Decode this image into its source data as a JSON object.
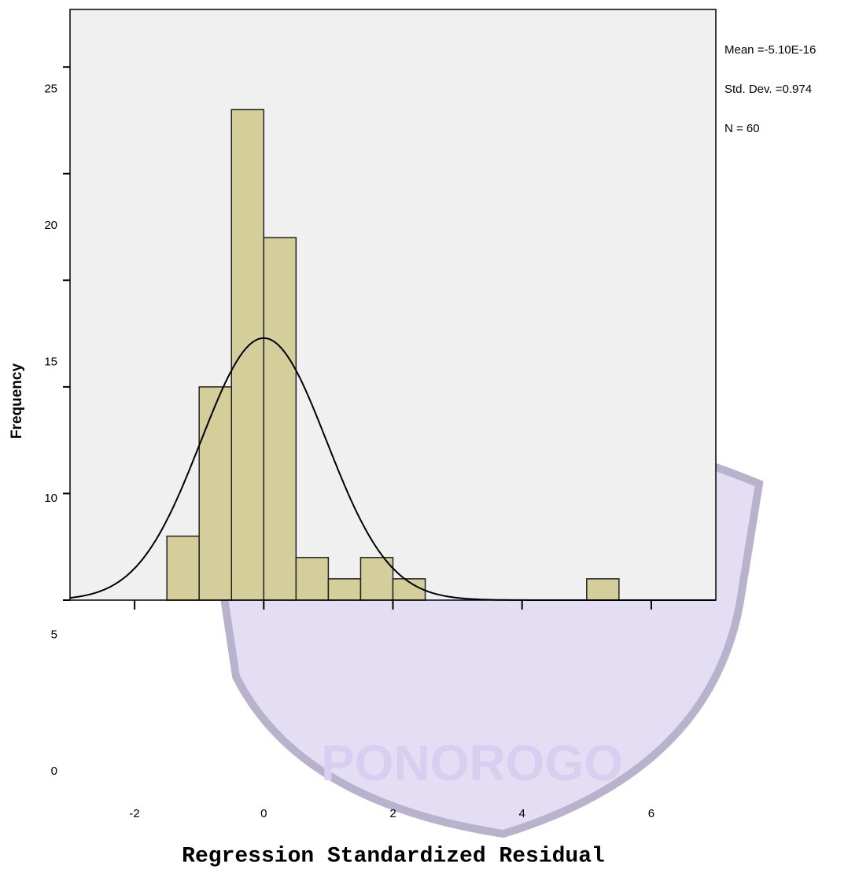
{
  "chart_data": {
    "type": "histogram",
    "x_label": "Regression Standardized Residual",
    "y_label": "Frequency",
    "bins": [
      -1.5,
      -1,
      -0.5,
      0,
      0.5,
      1,
      1.5,
      2,
      2.5,
      3,
      3.5,
      4,
      4.5,
      5,
      5.5
    ],
    "values": [
      3,
      10,
      23,
      17,
      2,
      1,
      2,
      1,
      0,
      0,
      0,
      0,
      0,
      1
    ],
    "color": "#d3ce9a",
    "xlim": [
      -3,
      7
    ],
    "ylim": [
      0,
      27.7
    ],
    "xticks": [
      -2,
      0,
      2,
      4,
      6
    ],
    "yticks": [
      0,
      5,
      10,
      15,
      20,
      25
    ],
    "stats": [
      {
        "value": -5.1e-16,
        "label": "Mean =-5.10E-16"
      },
      {
        "value": 0.974,
        "label": "Std. Dev. =0.974"
      },
      {
        "value": 60,
        "label": "N = 60"
      }
    ],
    "watermark_text": "PONOROGO"
  }
}
